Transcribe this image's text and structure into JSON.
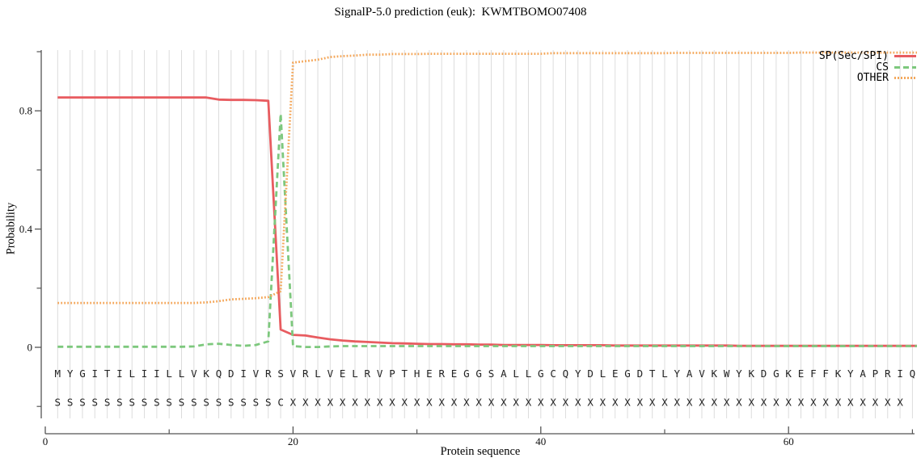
{
  "title": "SignalP-5.0 prediction (euk):  KWMTBOMO07408",
  "colors": {
    "axis": "#555555",
    "grid": "#dcdcdc",
    "text": "#111111",
    "sequence_text": "#222222"
  },
  "chart_data": {
    "type": "line",
    "title": "SignalP-5.0 prediction (euk):  KWMTBOMO07408",
    "xlabel": "Protein sequence",
    "ylabel": "Probability",
    "legend_position": "top-right",
    "grid": {
      "vertical_per_residue": true,
      "color": "#dcdcdc"
    },
    "x_axis": {
      "major_ticks": [
        {
          "label": "0",
          "value": 0
        },
        {
          "label": "20",
          "value": 20
        },
        {
          "label": "40",
          "value": 40
        },
        {
          "label": "60",
          "value": 60
        }
      ],
      "minor_ticks": [
        10,
        30,
        50,
        70
      ],
      "range": [
        0,
        70.2
      ]
    },
    "y_axis": {
      "major_ticks": [
        {
          "label": "0",
          "value": 0
        },
        {
          "label": "0.4",
          "value": 0.4
        },
        {
          "label": "0.8",
          "value": 0.8
        }
      ],
      "minor_ticks": [
        -0.2,
        0.2,
        0.6,
        1.0
      ],
      "range": [
        -0.29,
        1.01
      ]
    },
    "sequence": "MYGITILIILLVKQDIVRSVRLVELRVPTHEREGGSALLGCQYDLEGDTLYAVKWYKDGKEFFKYAPRIQ",
    "annotation": "SSSSSSSSSSSSSSSSSSCXXXXXXXXXXXXXXXXXXXXXXXXXXXXXXXXXXXXXXXXXXXXXXXXXX",
    "series": [
      {
        "name": "SP(Sec/SPI)",
        "color": "#e85c60",
        "style": "solid",
        "values": [
          0.845,
          0.845,
          0.845,
          0.845,
          0.845,
          0.845,
          0.845,
          0.845,
          0.845,
          0.845,
          0.845,
          0.845,
          0.845,
          0.838,
          0.837,
          0.837,
          0.836,
          0.834,
          0.06,
          0.042,
          0.04,
          0.033,
          0.027,
          0.023,
          0.02,
          0.018,
          0.016,
          0.014,
          0.013,
          0.012,
          0.011,
          0.011,
          0.01,
          0.01,
          0.009,
          0.009,
          0.008,
          0.008,
          0.008,
          0.008,
          0.007,
          0.007,
          0.007,
          0.007,
          0.007,
          0.006,
          0.006,
          0.006,
          0.006,
          0.006,
          0.006,
          0.006,
          0.006,
          0.006,
          0.006,
          0.005,
          0.005,
          0.005,
          0.005,
          0.005,
          0.005,
          0.005,
          0.005,
          0.005,
          0.005,
          0.005,
          0.005,
          0.005,
          0.005,
          0.005
        ]
      },
      {
        "name": "CS",
        "color": "#7dc87d",
        "style": "dashed",
        "values": [
          0.002,
          0.002,
          0.002,
          0.002,
          0.002,
          0.002,
          0.002,
          0.002,
          0.002,
          0.002,
          0.002,
          0.003,
          0.01,
          0.012,
          0.008,
          0.005,
          0.008,
          0.02,
          0.79,
          0.004,
          0.001,
          0.001,
          0.003,
          0.004,
          0.004,
          0.004,
          0.004,
          0.004,
          0.004,
          0.004,
          0.004,
          0.004,
          0.004,
          0.004,
          0.004,
          0.004,
          0.004,
          0.004,
          0.004,
          0.004,
          0.004,
          0.004,
          0.004,
          0.004,
          0.004,
          0.004,
          0.004,
          0.004,
          0.004,
          0.004,
          0.004,
          0.004,
          0.004,
          0.004,
          0.004,
          0.004,
          0.004,
          0.004,
          0.004,
          0.004,
          0.004,
          0.004,
          0.004,
          0.004,
          0.004,
          0.004,
          0.004,
          0.004,
          0.004,
          0.004
        ]
      },
      {
        "name": "OTHER",
        "color": "#f4a75a",
        "style": "dotted",
        "values": [
          0.15,
          0.15,
          0.15,
          0.15,
          0.15,
          0.15,
          0.15,
          0.15,
          0.15,
          0.15,
          0.15,
          0.15,
          0.152,
          0.156,
          0.162,
          0.164,
          0.166,
          0.17,
          0.19,
          0.963,
          0.968,
          0.973,
          0.982,
          0.985,
          0.987,
          0.99,
          0.99,
          0.992,
          0.992,
          0.992,
          0.993,
          0.993,
          0.993,
          0.993,
          0.993,
          0.993,
          0.993,
          0.993,
          0.993,
          0.993,
          0.995,
          0.995,
          0.995,
          0.995,
          0.995,
          0.995,
          0.995,
          0.995,
          0.995,
          0.995,
          0.996,
          0.996,
          0.996,
          0.996,
          0.996,
          0.996,
          0.996,
          0.996,
          0.996,
          0.996,
          0.997,
          0.997,
          0.997,
          0.997,
          0.997,
          0.997,
          0.997,
          0.997,
          0.997,
          0.997
        ]
      }
    ]
  }
}
